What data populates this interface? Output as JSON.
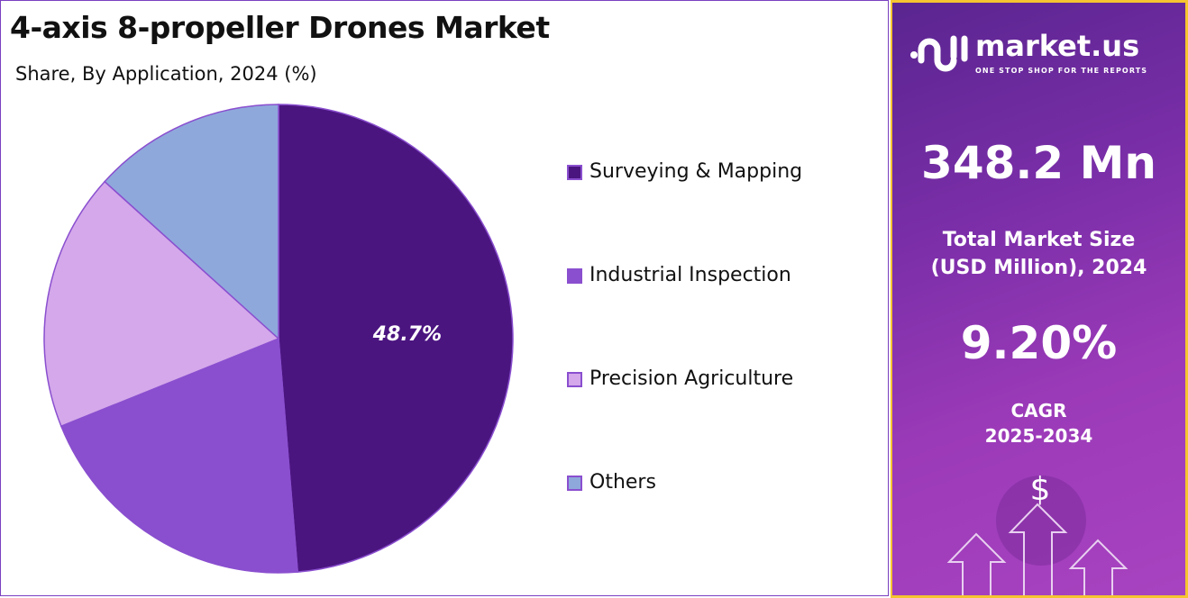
{
  "header": {
    "title": "4-axis 8-propeller Drones Market",
    "subtitle": "Share, By Application, 2024 (%)"
  },
  "chart_data": {
    "type": "pie",
    "title": "4-axis 8-propeller Drones Market",
    "subtitle": "Share, By Application, 2024 (%)",
    "categories": [
      "Surveying & Mapping",
      "Industrial Inspection",
      "Precision Agriculture",
      "Others"
    ],
    "values": [
      48.7,
      20.2,
      17.8,
      13.3
    ],
    "colors": [
      "#4b1580",
      "#8a4fcf",
      "#d4a8ea",
      "#8fa8dc"
    ],
    "data_labels": [
      "48.7%",
      "",
      "",
      ""
    ],
    "start_angle": "top, clockwise",
    "legend_position": "right"
  },
  "sidebar": {
    "logo_name": "market.us",
    "logo_tagline": "ONE STOP SHOP FOR THE REPORTS",
    "market_size": "348.2 Mn",
    "market_size_label_1": "Total Market Size",
    "market_size_label_2": "(USD Million), 2024",
    "cagr": "9.20%",
    "cagr_label": "CAGR",
    "cagr_period": "2025-2034",
    "icon": "dollar-arrows-icon",
    "border_color": "#f5c430"
  }
}
